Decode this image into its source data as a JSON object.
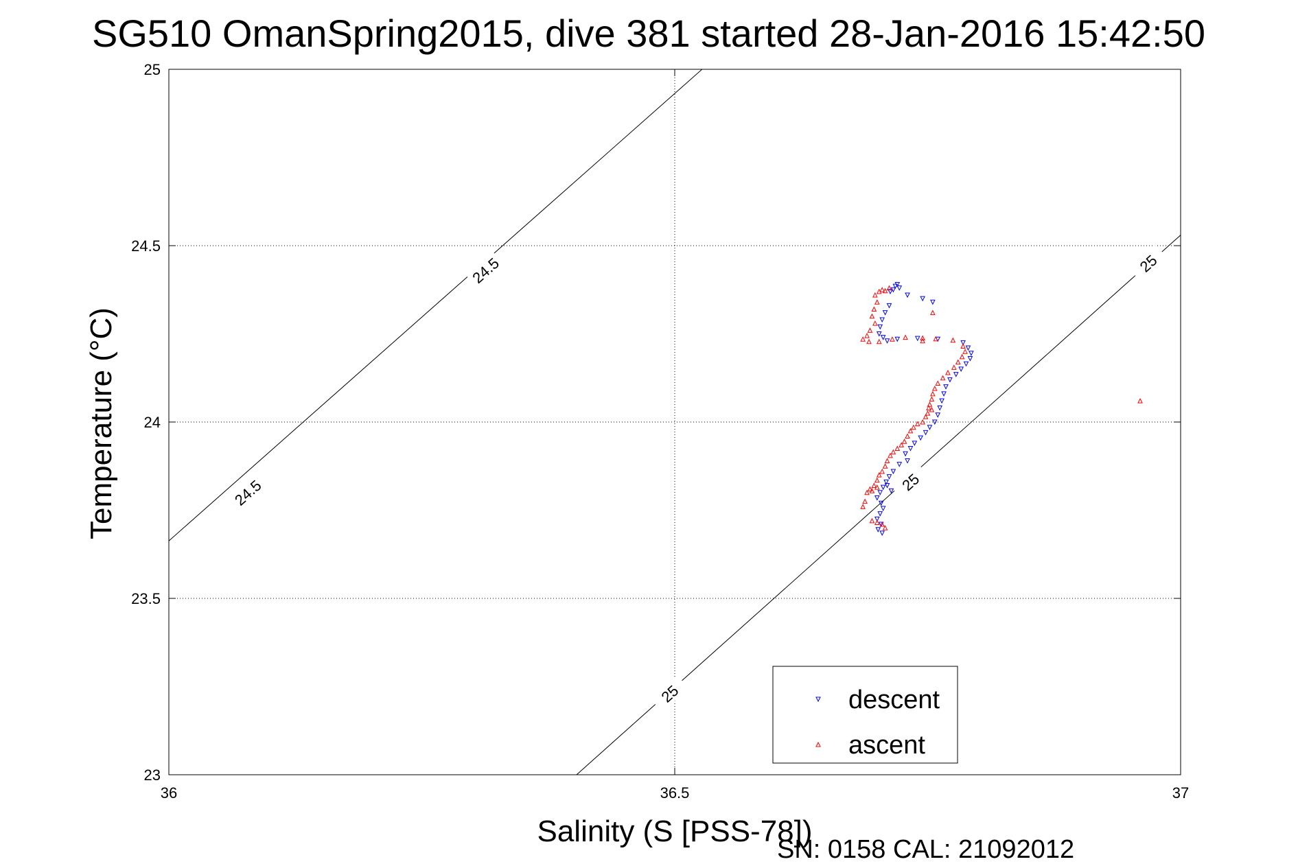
{
  "chart_data": {
    "type": "scatter",
    "title": "SG510 OmanSpring2015, dive 381 started 28-Jan-2016 15:42:50",
    "xlabel": "Salinity (S [PSS-78])",
    "ylabel": "Temperature (°C)",
    "xlim": [
      36,
      37
    ],
    "ylim": [
      23,
      25
    ],
    "xticks": [
      36,
      36.5,
      37
    ],
    "xtick_labels": [
      "36",
      "36.5",
      "37"
    ],
    "yticks": [
      23,
      23.5,
      24,
      24.5,
      25
    ],
    "ytick_labels": [
      "23",
      "23.5",
      "24",
      "24.5",
      "25"
    ],
    "grid": true,
    "legend_position": "bottom-center",
    "footer": "SN: 0158  CAL: 21092012",
    "isopycnals": [
      {
        "label": "24.5",
        "line": [
          [
            36.0,
            23.663
          ],
          [
            36.527,
            25.0
          ]
        ],
        "label_positions": [
          [
            36.078,
            23.8
          ],
          [
            36.313,
            24.43
          ]
        ]
      },
      {
        "label": "25",
        "line": [
          [
            36.403,
            23.0
          ],
          [
            37.0,
            24.53
          ]
        ],
        "label_positions": [
          [
            36.495,
            23.23
          ],
          [
            36.733,
            23.83
          ],
          [
            36.968,
            24.45
          ]
        ]
      }
    ],
    "series": [
      {
        "name": "descent",
        "color": "#0000ff",
        "marker": "triangle-down",
        "points": [
          [
            36.72,
            24.39
          ],
          [
            36.718,
            24.385
          ],
          [
            36.722,
            24.38
          ],
          [
            36.716,
            24.375
          ],
          [
            36.713,
            24.37
          ],
          [
            36.73,
            24.36
          ],
          [
            36.745,
            24.35
          ],
          [
            36.755,
            24.34
          ],
          [
            36.712,
            24.33
          ],
          [
            36.708,
            24.31
          ],
          [
            36.705,
            24.29
          ],
          [
            36.703,
            24.27
          ],
          [
            36.702,
            24.25
          ],
          [
            36.706,
            24.24
          ],
          [
            36.71,
            24.23
          ],
          [
            36.72,
            24.235
          ],
          [
            36.74,
            24.237
          ],
          [
            36.76,
            24.235
          ],
          [
            36.785,
            24.225
          ],
          [
            36.79,
            24.21
          ],
          [
            36.793,
            24.195
          ],
          [
            36.792,
            24.18
          ],
          [
            36.788,
            24.165
          ],
          [
            36.783,
            24.15
          ],
          [
            36.778,
            24.135
          ],
          [
            36.772,
            24.12
          ],
          [
            36.768,
            24.1
          ],
          [
            36.766,
            24.08
          ],
          [
            36.764,
            24.06
          ],
          [
            36.762,
            24.04
          ],
          [
            36.76,
            24.02
          ],
          [
            36.757,
            24.0
          ],
          [
            36.752,
            23.985
          ],
          [
            36.748,
            23.97
          ],
          [
            36.743,
            23.955
          ],
          [
            36.737,
            23.94
          ],
          [
            36.733,
            23.925
          ],
          [
            36.728,
            23.91
          ],
          [
            36.73,
            23.89
          ],
          [
            36.722,
            23.88
          ],
          [
            36.716,
            23.86
          ],
          [
            36.712,
            23.845
          ],
          [
            36.709,
            23.83
          ],
          [
            36.706,
            23.815
          ],
          [
            36.703,
            23.8
          ],
          [
            36.7,
            23.785
          ],
          [
            36.704,
            23.77
          ],
          [
            36.706,
            23.755
          ],
          [
            36.703,
            23.74
          ],
          [
            36.7,
            23.725
          ],
          [
            36.704,
            23.71
          ],
          [
            36.701,
            23.695
          ],
          [
            36.705,
            23.685
          ],
          [
            36.71,
            23.82
          ],
          [
            36.714,
            23.805
          ]
        ]
      },
      {
        "name": "ascent",
        "color": "#ff0000",
        "marker": "triangle-up",
        "points": [
          [
            36.712,
            24.38
          ],
          [
            36.705,
            24.375
          ],
          [
            36.708,
            24.372
          ],
          [
            36.702,
            24.37
          ],
          [
            36.698,
            24.36
          ],
          [
            36.7,
            24.34
          ],
          [
            36.697,
            24.32
          ],
          [
            36.695,
            24.3
          ],
          [
            36.698,
            24.28
          ],
          [
            36.693,
            24.26
          ],
          [
            36.69,
            24.245
          ],
          [
            36.686,
            24.235
          ],
          [
            36.692,
            24.228
          ],
          [
            36.702,
            24.228
          ],
          [
            36.715,
            24.235
          ],
          [
            36.728,
            24.24
          ],
          [
            36.745,
            24.238
          ],
          [
            36.758,
            24.236
          ],
          [
            36.775,
            24.232
          ],
          [
            36.785,
            24.215
          ],
          [
            36.787,
            24.2
          ],
          [
            36.784,
            24.185
          ],
          [
            36.78,
            24.17
          ],
          [
            36.776,
            24.155
          ],
          [
            36.77,
            24.14
          ],
          [
            36.765,
            24.125
          ],
          [
            36.76,
            24.11
          ],
          [
            36.757,
            24.095
          ],
          [
            36.755,
            24.08
          ],
          [
            36.754,
            24.065
          ],
          [
            36.752,
            24.05
          ],
          [
            36.751,
            24.04
          ],
          [
            36.754,
            24.035
          ],
          [
            36.75,
            24.025
          ],
          [
            36.748,
            24.015
          ],
          [
            36.745,
            24.0
          ],
          [
            36.74,
            23.995
          ],
          [
            36.736,
            23.985
          ],
          [
            36.733,
            23.975
          ],
          [
            36.73,
            23.96
          ],
          [
            36.727,
            23.945
          ],
          [
            36.724,
            23.935
          ],
          [
            36.72,
            23.925
          ],
          [
            36.716,
            23.915
          ],
          [
            36.713,
            23.905
          ],
          [
            36.71,
            23.89
          ],
          [
            36.708,
            23.875
          ],
          [
            36.705,
            23.86
          ],
          [
            36.702,
            23.85
          ],
          [
            36.7,
            23.835
          ],
          [
            36.697,
            23.82
          ],
          [
            36.693,
            23.81
          ],
          [
            36.69,
            23.8
          ],
          [
            36.695,
            23.805
          ],
          [
            36.7,
            23.815
          ],
          [
            36.688,
            23.775
          ],
          [
            36.686,
            23.76
          ],
          [
            36.695,
            23.72
          ],
          [
            36.7,
            23.715
          ],
          [
            36.705,
            23.71
          ],
          [
            36.708,
            23.7
          ],
          [
            36.96,
            24.06
          ],
          [
            36.745,
            24.23
          ],
          [
            36.755,
            24.31
          ]
        ]
      }
    ]
  }
}
